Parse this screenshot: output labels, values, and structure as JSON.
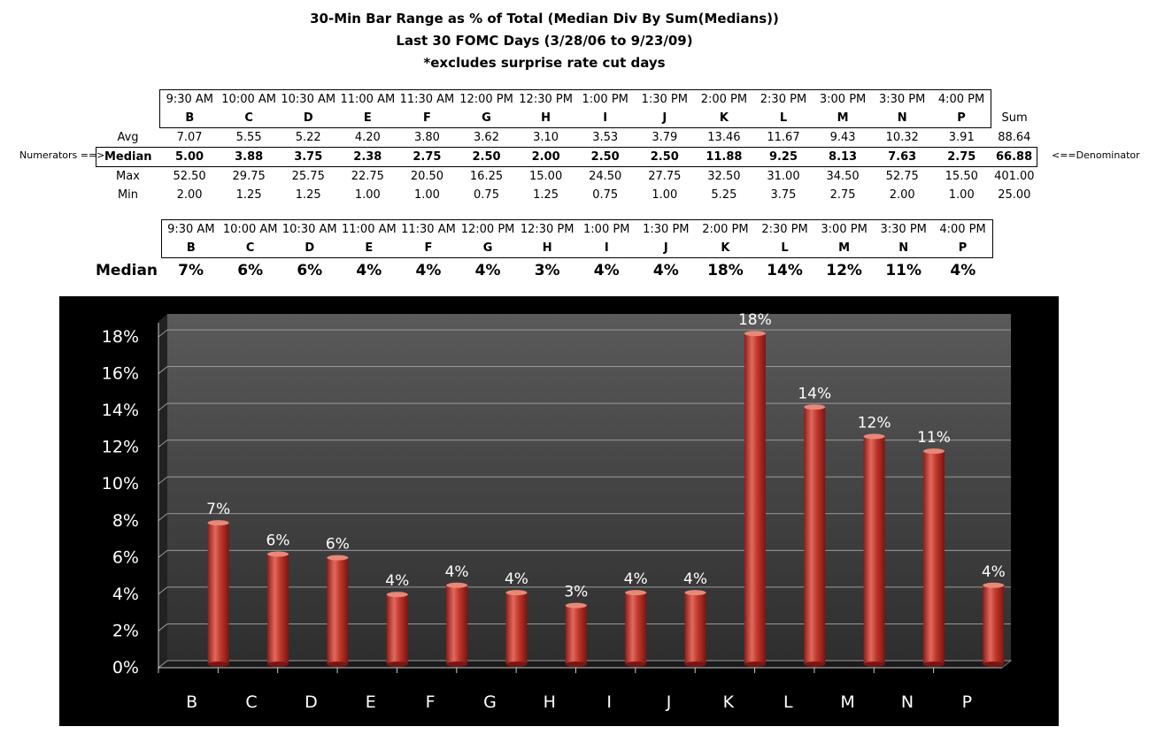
{
  "titles": {
    "line1": "30-Min Bar Range as % of Total (Median Div By Sum(Medians))",
    "line2": "Last 30 FOMC Days (3/28/06 to 9/23/09)",
    "line3": "*excludes surprise rate cut days"
  },
  "times": [
    "9:30 AM",
    "10:00 AM",
    "10:30 AM",
    "11:00 AM",
    "11:30 AM",
    "12:00 PM",
    "12:30 PM",
    "1:00 PM",
    "1:30 PM",
    "2:00 PM",
    "2:30 PM",
    "3:00 PM",
    "3:30 PM",
    "4:00 PM"
  ],
  "letters": [
    "B",
    "C",
    "D",
    "E",
    "F",
    "G",
    "H",
    "I",
    "J",
    "K",
    "L",
    "M",
    "N",
    "P"
  ],
  "stats": {
    "sum_header": "Sum",
    "numerators_note": "Numerators ==>",
    "denominator_note": "<==Denominator",
    "rows": [
      {
        "label": "Avg",
        "values": [
          "7.07",
          "5.55",
          "5.22",
          "4.20",
          "3.80",
          "3.62",
          "3.10",
          "3.53",
          "3.79",
          "13.46",
          "11.67",
          "9.43",
          "10.32",
          "3.91"
        ],
        "sum": "88.64"
      },
      {
        "label": "Median",
        "values": [
          "5.00",
          "3.88",
          "3.75",
          "2.38",
          "2.75",
          "2.50",
          "2.00",
          "2.50",
          "2.50",
          "11.88",
          "9.25",
          "8.13",
          "7.63",
          "2.75"
        ],
        "sum": "66.88"
      },
      {
        "label": "Max",
        "values": [
          "52.50",
          "29.75",
          "25.75",
          "22.75",
          "20.50",
          "16.25",
          "15.00",
          "24.50",
          "27.75",
          "32.50",
          "31.00",
          "34.50",
          "52.75",
          "15.50"
        ],
        "sum": "401.00"
      },
      {
        "label": "Min",
        "values": [
          "2.00",
          "1.25",
          "1.25",
          "1.00",
          "1.00",
          "0.75",
          "1.25",
          "0.75",
          "1.00",
          "5.25",
          "3.75",
          "2.75",
          "2.00",
          "1.00"
        ],
        "sum": "25.00"
      }
    ]
  },
  "percent_row": {
    "label": "Median",
    "values": [
      "7%",
      "6%",
      "6%",
      "4%",
      "4%",
      "4%",
      "3%",
      "4%",
      "4%",
      "18%",
      "14%",
      "12%",
      "11%",
      "4%"
    ]
  },
  "chart_data": {
    "type": "bar",
    "categories": [
      "B",
      "C",
      "D",
      "E",
      "F",
      "G",
      "H",
      "I",
      "J",
      "K",
      "L",
      "M",
      "N",
      "P"
    ],
    "values": [
      7.5,
      5.8,
      5.6,
      3.6,
      4.1,
      3.7,
      3.0,
      3.7,
      3.7,
      17.8,
      13.8,
      12.2,
      11.4,
      4.1
    ],
    "data_labels": [
      "7%",
      "6%",
      "6%",
      "4%",
      "4%",
      "4%",
      "3%",
      "4%",
      "4%",
      "18%",
      "14%",
      "12%",
      "11%",
      "4%"
    ],
    "ylim": [
      0,
      18
    ],
    "yticks": [
      0,
      2,
      4,
      6,
      8,
      10,
      12,
      14,
      16,
      18
    ],
    "ytick_labels": [
      "0%",
      "2%",
      "4%",
      "6%",
      "8%",
      "10%",
      "12%",
      "14%",
      "16%",
      "18%"
    ],
    "grid": true,
    "colors": {
      "background": "#000000",
      "plot": "#3a3a3a",
      "bar": "#c0392b",
      "text": "#ffffff"
    }
  }
}
